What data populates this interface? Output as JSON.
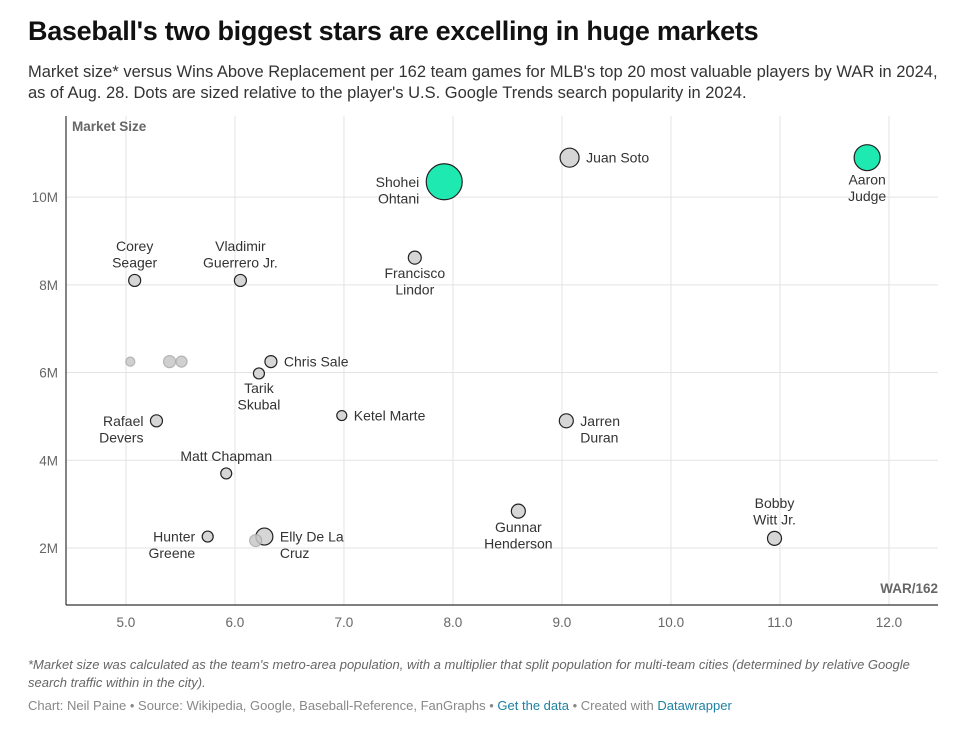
{
  "title": "Baseball's two biggest stars are excelling in huge markets",
  "subtitle": "Market size* versus Wins Above Replacement per 162 team games for MLB's top 20 most valuable players by WAR in 2024, as of Aug. 28. Dots are sized relative to the player's U.S. Google Trends search popularity in 2024.",
  "footnote": "*Market size was calculated as the team's metro-area population, with a multiplier that split population for multi-team cities (determined by relative Google search traffic within in the city).",
  "credits": {
    "text": "Chart: Neil Paine • Source: Wikipedia, Google, Baseball-Reference, FanGraphs •",
    "get_data": "Get the data",
    "sep": "• Created with",
    "datawrapper": "Datawrapper"
  },
  "colors": {
    "highlight": "#1de9b0",
    "dot": "#d6d6d6",
    "faded": "#c8c8c8",
    "stroke": "#222222",
    "grid": "#e3e3e3"
  },
  "chart_data": {
    "type": "scatter",
    "xlabel": "WAR/162",
    "ylabel": "Market Size",
    "xlim": [
      4.45,
      12.45
    ],
    "ylim": [
      0.7,
      11.85
    ],
    "x_ticks": [
      5.0,
      6.0,
      7.0,
      8.0,
      9.0,
      10.0,
      11.0,
      12.0
    ],
    "x_tick_labels": [
      "5.0",
      "6.0",
      "7.0",
      "8.0",
      "9.0",
      "10.0",
      "11.0",
      "12.0"
    ],
    "y_ticks": [
      2,
      4,
      6,
      8,
      10
    ],
    "y_tick_labels": [
      "2M",
      "4M",
      "6M",
      "8M",
      "10M"
    ],
    "grid": true,
    "points": [
      {
        "name": "Aaron Judge",
        "label_lines": [
          "Aaron",
          "Judge"
        ],
        "x": 11.8,
        "y": 10.9,
        "size": 13,
        "highlight": true,
        "label_pos": "below",
        "label_align": "middle"
      },
      {
        "name": "Shohei Ohtani",
        "label_lines": [
          "Shohei",
          "Ohtani"
        ],
        "x": 7.92,
        "y": 10.35,
        "size": 18,
        "highlight": true,
        "label_pos": "left",
        "label_align": "end"
      },
      {
        "name": "Juan Soto",
        "label_lines": [
          "Juan Soto"
        ],
        "x": 9.07,
        "y": 10.9,
        "size": 9.5,
        "highlight": false,
        "label_pos": "right",
        "label_align": "start"
      },
      {
        "name": "Francisco Lindor",
        "label_lines": [
          "Francisco",
          "Lindor"
        ],
        "x": 7.65,
        "y": 8.62,
        "size": 6.5,
        "highlight": false,
        "label_pos": "below",
        "label_align": "middle"
      },
      {
        "name": "Corey Seager",
        "label_lines": [
          "Corey",
          "Seager"
        ],
        "x": 5.08,
        "y": 8.1,
        "size": 6,
        "highlight": false,
        "label_pos": "above",
        "label_align": "middle"
      },
      {
        "name": "Vladimir Guerrero Jr.",
        "label_lines": [
          "Vladimir",
          "Guerrero Jr."
        ],
        "x": 6.05,
        "y": 8.1,
        "size": 6,
        "highlight": false,
        "label_pos": "above",
        "label_align": "middle"
      },
      {
        "name": "Chris Sale",
        "label_lines": [
          "Chris Sale"
        ],
        "x": 6.33,
        "y": 6.25,
        "size": 6,
        "highlight": false,
        "label_pos": "right",
        "label_align": "start"
      },
      {
        "name": "Tarik Skubal",
        "label_lines": [
          "Tarik",
          "Skubal"
        ],
        "x": 6.22,
        "y": 5.98,
        "size": 5.5,
        "highlight": false,
        "label_pos": "below",
        "label_align": "middle"
      },
      {
        "name": "Ketel Marte",
        "label_lines": [
          "Ketel Marte"
        ],
        "x": 6.98,
        "y": 5.02,
        "size": 5,
        "highlight": false,
        "label_pos": "right",
        "label_align": "start"
      },
      {
        "name": "Rafael Devers",
        "label_lines": [
          "Rafael",
          "Devers"
        ],
        "x": 5.28,
        "y": 4.9,
        "size": 6,
        "highlight": false,
        "label_pos": "left",
        "label_align": "end"
      },
      {
        "name": "Jarren Duran",
        "label_lines": [
          "Jarren",
          "Duran"
        ],
        "x": 9.04,
        "y": 4.9,
        "size": 7,
        "highlight": false,
        "label_pos": "right",
        "label_align": "start"
      },
      {
        "name": "Matt Chapman",
        "label_lines": [
          "Matt Chapman"
        ],
        "x": 5.92,
        "y": 3.7,
        "size": 5.5,
        "highlight": false,
        "label_pos": "above",
        "label_align": "middle"
      },
      {
        "name": "Gunnar Henderson",
        "label_lines": [
          "Gunnar",
          "Henderson"
        ],
        "x": 8.6,
        "y": 2.84,
        "size": 7,
        "highlight": false,
        "label_pos": "below",
        "label_align": "middle"
      },
      {
        "name": "Bobby Witt Jr.",
        "label_lines": [
          "Bobby",
          "Witt Jr."
        ],
        "x": 10.95,
        "y": 2.22,
        "size": 7,
        "highlight": false,
        "label_pos": "above",
        "label_align": "middle"
      },
      {
        "name": "Hunter Greene",
        "label_lines": [
          "Hunter",
          "Greene"
        ],
        "x": 5.75,
        "y": 2.26,
        "size": 5.5,
        "highlight": false,
        "label_pos": "left",
        "label_align": "end"
      },
      {
        "name": "Elly De La Cruz",
        "label_lines": [
          "Elly De La",
          "Cruz"
        ],
        "x": 6.27,
        "y": 2.26,
        "size": 8.5,
        "highlight": false,
        "label_pos": "right",
        "label_align": "start"
      },
      {
        "name": "",
        "label_lines": [],
        "x": 5.04,
        "y": 6.25,
        "size": 4.5,
        "highlight": false,
        "faded": true
      },
      {
        "name": "",
        "label_lines": [],
        "x": 5.4,
        "y": 6.25,
        "size": 6,
        "highlight": false,
        "faded": true
      },
      {
        "name": "",
        "label_lines": [],
        "x": 5.51,
        "y": 6.25,
        "size": 5.5,
        "highlight": false,
        "faded": true
      },
      {
        "name": "",
        "label_lines": [],
        "x": 6.19,
        "y": 2.17,
        "size": 6,
        "highlight": false,
        "faded": true
      }
    ]
  }
}
